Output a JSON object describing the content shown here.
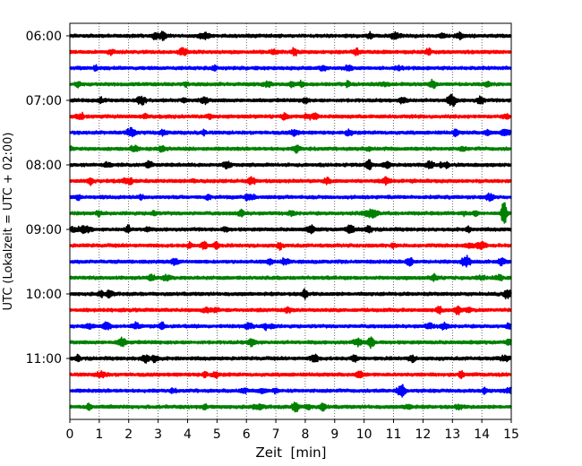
{
  "chart_data": {
    "type": "line",
    "title": "",
    "xlabel": "Zeit  [min]",
    "ylabel": "UTC (Lokalzeit = UTC + 02:00)",
    "xlim": [
      0,
      15
    ],
    "x_ticks": [
      0,
      1,
      2,
      3,
      4,
      5,
      6,
      7,
      8,
      9,
      10,
      11,
      12,
      13,
      14,
      15
    ],
    "x_tick_labels": [
      "0",
      "1",
      "2",
      "3",
      "4",
      "5",
      "6",
      "7",
      "8",
      "9",
      "10",
      "11",
      "12",
      "13",
      "14",
      "15"
    ],
    "y_tick_labels": [
      "06:00",
      "07:00",
      "08:00",
      "09:00",
      "10:00",
      "11:00"
    ],
    "x_grid": "dotted vertical lines at each minute",
    "legend": "none",
    "row_interval_minutes": 15,
    "color_cycle": [
      "#000000",
      "#ff0000",
      "#0000ff",
      "#008000"
    ],
    "rows": [
      {
        "start": "06:00",
        "color": "#000000"
      },
      {
        "start": "06:15",
        "color": "#ff0000"
      },
      {
        "start": "06:30",
        "color": "#0000ff"
      },
      {
        "start": "06:45",
        "color": "#008000"
      },
      {
        "start": "07:00",
        "color": "#000000"
      },
      {
        "start": "07:15",
        "color": "#ff0000"
      },
      {
        "start": "07:30",
        "color": "#0000ff"
      },
      {
        "start": "07:45",
        "color": "#008000"
      },
      {
        "start": "08:00",
        "color": "#000000"
      },
      {
        "start": "08:15",
        "color": "#ff0000"
      },
      {
        "start": "08:30",
        "color": "#0000ff"
      },
      {
        "start": "08:45",
        "color": "#008000"
      },
      {
        "start": "09:00",
        "color": "#000000"
      },
      {
        "start": "09:15",
        "color": "#ff0000"
      },
      {
        "start": "09:30",
        "color": "#0000ff"
      },
      {
        "start": "09:45",
        "color": "#008000"
      },
      {
        "start": "10:00",
        "color": "#000000"
      },
      {
        "start": "10:15",
        "color": "#ff0000"
      },
      {
        "start": "10:30",
        "color": "#0000ff"
      },
      {
        "start": "10:45",
        "color": "#008000"
      },
      {
        "start": "11:00",
        "color": "#000000"
      },
      {
        "start": "11:15",
        "color": "#ff0000"
      },
      {
        "start": "11:30",
        "color": "#0000ff"
      },
      {
        "start": "11:45",
        "color": "#008000"
      }
    ]
  }
}
